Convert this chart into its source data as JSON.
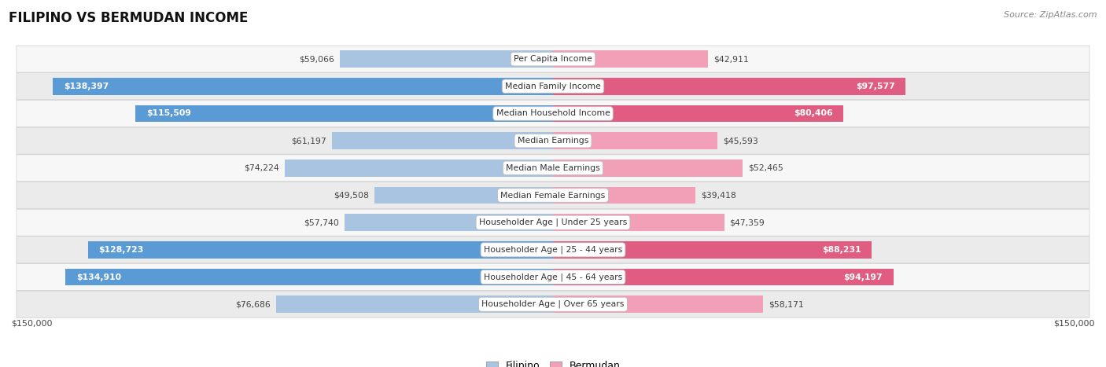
{
  "title": "FILIPINO VS BERMUDAN INCOME",
  "source": "Source: ZipAtlas.com",
  "categories": [
    "Per Capita Income",
    "Median Family Income",
    "Median Household Income",
    "Median Earnings",
    "Median Male Earnings",
    "Median Female Earnings",
    "Householder Age | Under 25 years",
    "Householder Age | 25 - 44 years",
    "Householder Age | 45 - 64 years",
    "Householder Age | Over 65 years"
  ],
  "filipino_values": [
    59066,
    138397,
    115509,
    61197,
    74224,
    49508,
    57740,
    128723,
    134910,
    76686
  ],
  "bermudan_values": [
    42911,
    97577,
    80406,
    45593,
    52465,
    39418,
    47359,
    88231,
    94197,
    58171
  ],
  "filipino_labels": [
    "$59,066",
    "$138,397",
    "$115,509",
    "$61,197",
    "$74,224",
    "$49,508",
    "$57,740",
    "$128,723",
    "$134,910",
    "$76,686"
  ],
  "bermudan_labels": [
    "$42,911",
    "$97,577",
    "$80,406",
    "$45,593",
    "$52,465",
    "$39,418",
    "$47,359",
    "$88,231",
    "$94,197",
    "$58,171"
  ],
  "filipino_color_light": "#a8c4e0",
  "filipino_color_dark": "#5b9bd5",
  "bermudan_color_light": "#f2a0b8",
  "bermudan_color_dark": "#e05c80",
  "max_value": 150000,
  "background_color": "#ffffff",
  "row_bg_odd": "#ebebeb",
  "row_bg_even": "#f7f7f7",
  "legend_filipino": "Filipino",
  "legend_bermudan": "Bermudan",
  "xlabel_left": "$150,000",
  "xlabel_right": "$150,000",
  "threshold": 78000
}
